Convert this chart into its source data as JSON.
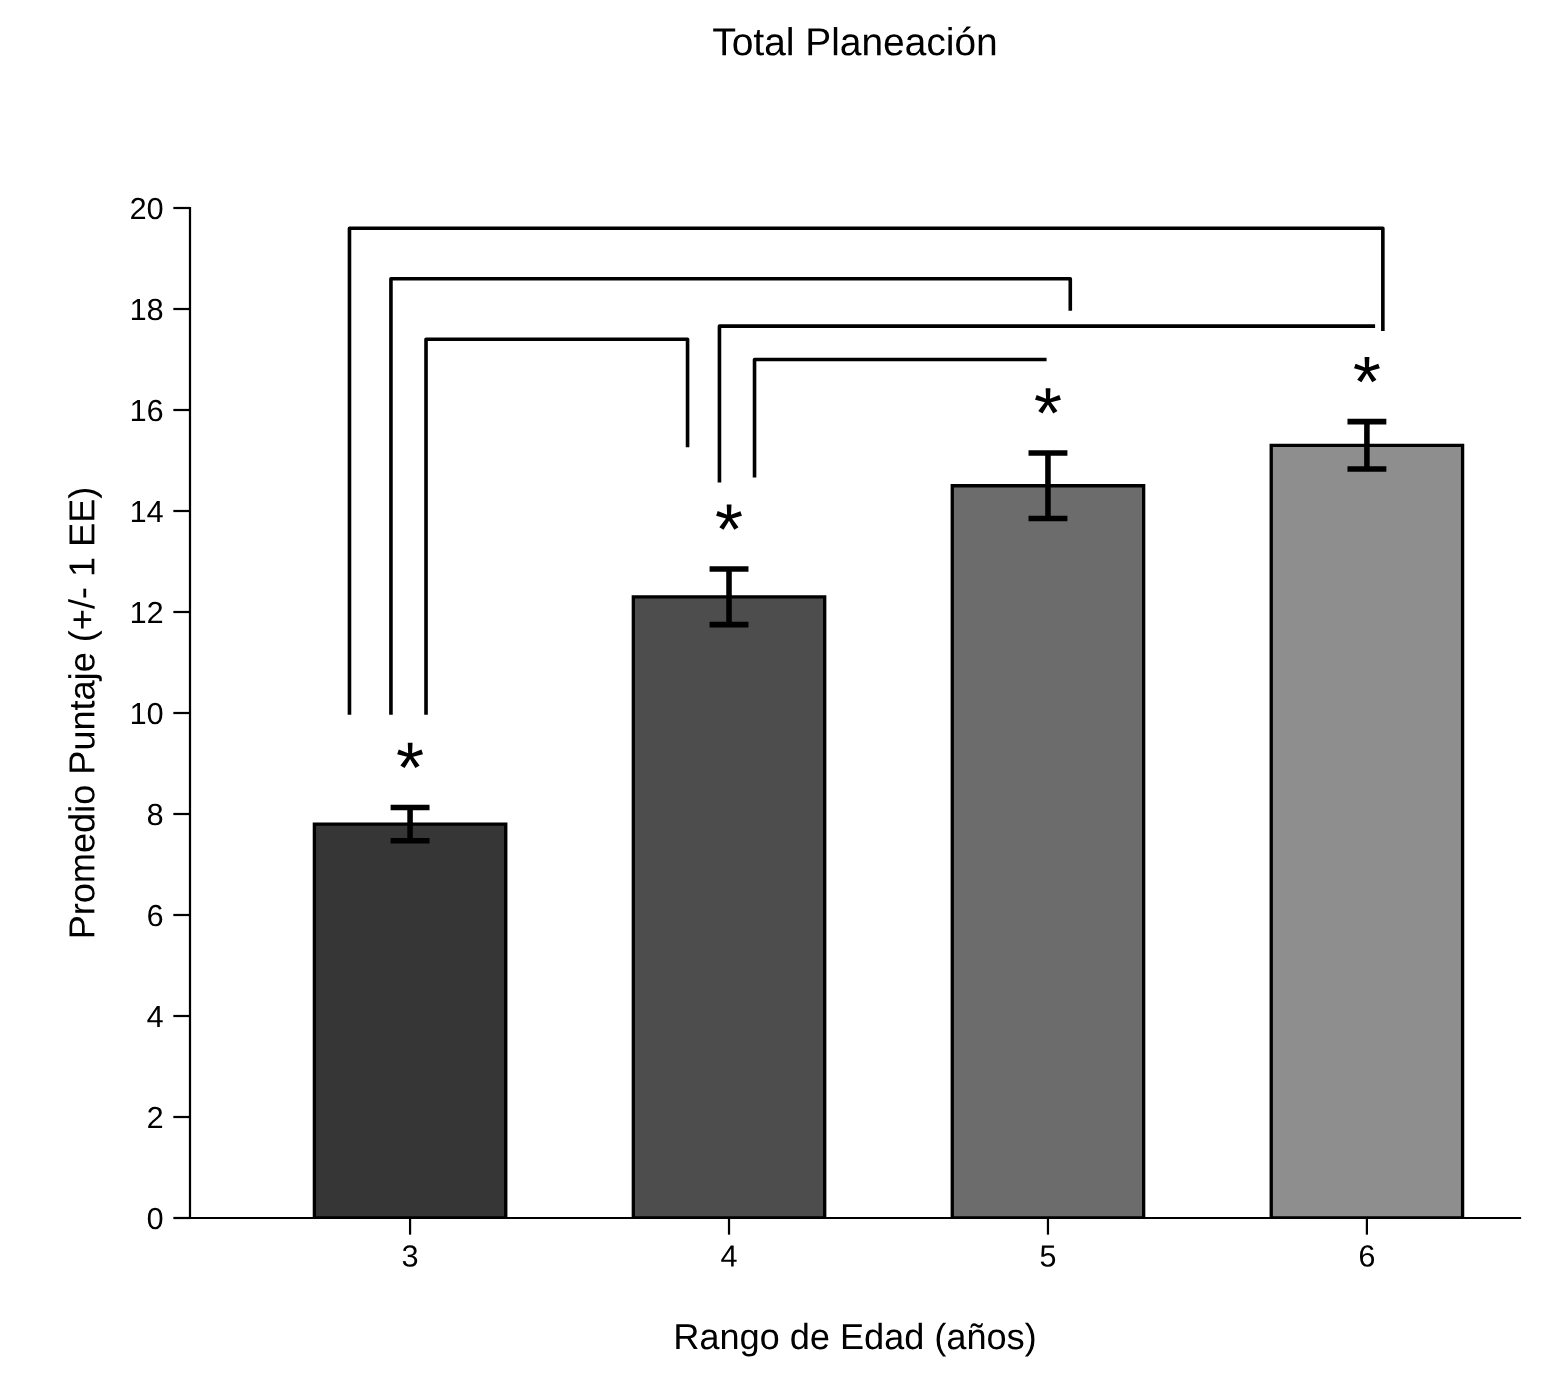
{
  "chart_data": {
    "type": "bar",
    "title": "Total Planeación",
    "xlabel": "Rango de Edad (años)",
    "ylabel": "Promedio Puntaje (+/- 1 EE)",
    "categories": [
      "3",
      "4",
      "5",
      "6"
    ],
    "values": [
      7.8,
      12.3,
      14.5,
      15.3
    ],
    "errors": [
      0.33,
      0.55,
      0.65,
      0.47
    ],
    "colors": [
      "#363636",
      "#4d4d4d",
      "#6c6c6c",
      "#8e8e8e"
    ],
    "ylim": [
      0,
      20
    ],
    "yticks": [
      0,
      2,
      4,
      6,
      8,
      10,
      12,
      14,
      16,
      18,
      20
    ],
    "annotations": [
      "*",
      "*",
      "*",
      "*"
    ],
    "grid": false,
    "legend": false
  }
}
